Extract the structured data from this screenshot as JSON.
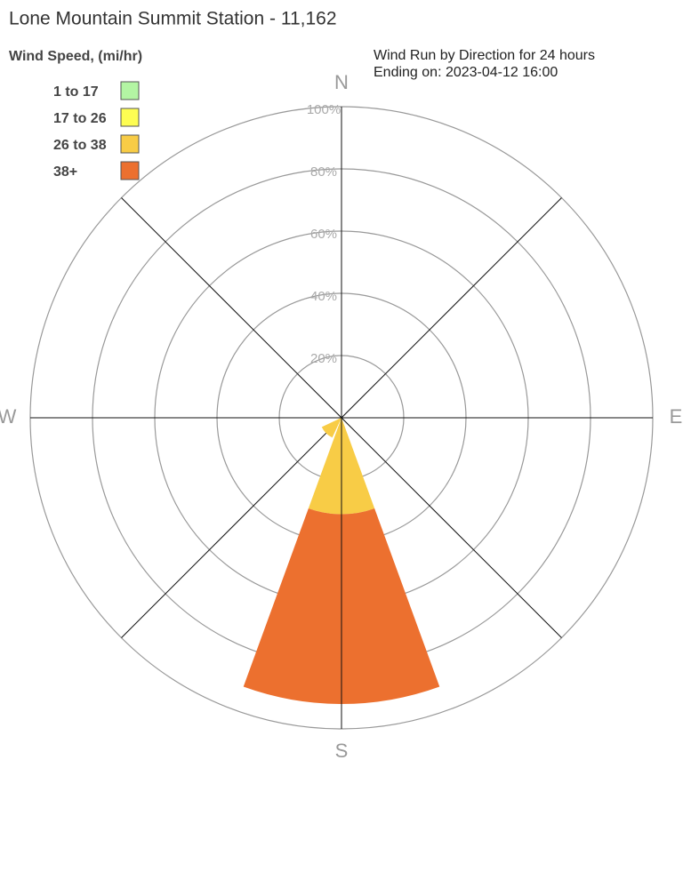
{
  "chart_data": {
    "type": "windrose",
    "title": "Lone Mountain Summit Station - 11,162",
    "legend_title": "Wind Speed, (mi/hr)",
    "subtitle": [
      "Wind Run by Direction for 24 hours",
      "Ending on: 2023-04-12 16:00"
    ],
    "categories": [
      "N",
      null,
      "E",
      null,
      "S",
      null,
      "W",
      null
    ],
    "rlim": [
      0,
      100
    ],
    "rticks": [
      {
        "value": 20,
        "label": "20%"
      },
      {
        "value": 40,
        "label": "40%"
      },
      {
        "value": 60,
        "label": "60%"
      },
      {
        "value": 80,
        "label": "80%"
      },
      {
        "value": 100,
        "label": "100%"
      }
    ],
    "stacked": true,
    "series": [
      {
        "name": "1 to 17",
        "color": "#b3f5a3",
        "values": [
          0,
          0,
          0,
          0,
          0,
          0,
          0,
          0
        ]
      },
      {
        "name": "17 to 26",
        "color": "#fdfd52",
        "values": [
          0,
          0,
          0,
          0,
          0,
          0,
          0,
          0
        ]
      },
      {
        "name": "26 to 38",
        "color": "#f8cc46",
        "values": [
          0,
          0,
          0,
          0,
          31,
          7,
          0,
          0
        ]
      },
      {
        "name": "38+",
        "color": "#ec702f",
        "values": [
          0,
          0,
          0,
          0,
          61,
          0,
          0,
          0
        ]
      }
    ]
  }
}
